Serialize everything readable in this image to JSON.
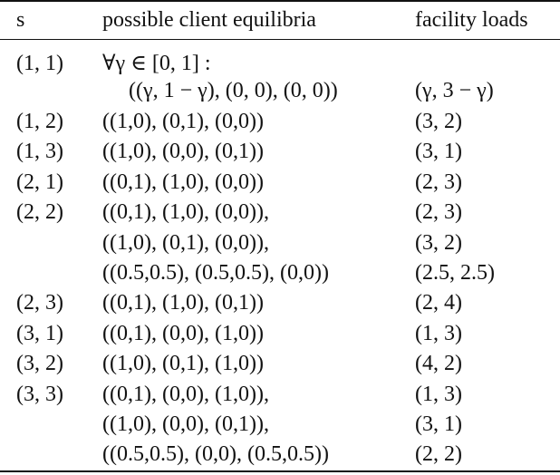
{
  "table": {
    "headers": {
      "s": "s",
      "equilibria": "possible client equilibria",
      "loads": "facility loads"
    },
    "rows": [
      {
        "s": "(1, 1)",
        "eq": "∀γ ∈ [0, 1] :",
        "load": ""
      },
      {
        "s": "",
        "eq": "((γ, 1 − γ), (0, 0), (0, 0))",
        "load": "(γ, 3 − γ)"
      },
      {
        "s": "(1, 2)",
        "eq": "((1,0), (0,1), (0,0))",
        "load": "(3, 2)"
      },
      {
        "s": "(1, 3)",
        "eq": "((1,0), (0,0), (0,1))",
        "load": "(3, 1)"
      },
      {
        "s": "(2, 1)",
        "eq": "((0,1), (1,0), (0,0))",
        "load": "(2, 3)"
      },
      {
        "s": "(2, 2)",
        "eq": "((0,1), (1,0), (0,0)),",
        "load": "(2, 3)"
      },
      {
        "s": "",
        "eq": "((1,0), (0,1), (0,0)),",
        "load": "(3, 2)"
      },
      {
        "s": "",
        "eq": "((0.5,0.5), (0.5,0.5), (0,0))",
        "load": "(2.5, 2.5)"
      },
      {
        "s": "(2, 3)",
        "eq": "((0,1), (1,0), (0,1))",
        "load": "(2, 4)"
      },
      {
        "s": "(3, 1)",
        "eq": "((0,1), (0,0), (1,0))",
        "load": "(1, 3)"
      },
      {
        "s": "(3, 2)",
        "eq": "((1,0), (0,1), (1,0))",
        "load": "(4, 2)"
      },
      {
        "s": "(3, 3)",
        "eq": "((0,1), (0,0), (1,0)),",
        "load": "(1, 3)"
      },
      {
        "s": "",
        "eq": "((1,0), (0,0), (0,1)),",
        "load": "(3, 1)"
      },
      {
        "s": "",
        "eq": "((0.5,0.5), (0,0), (0.5,0.5))",
        "load": "(2, 2)"
      }
    ]
  }
}
